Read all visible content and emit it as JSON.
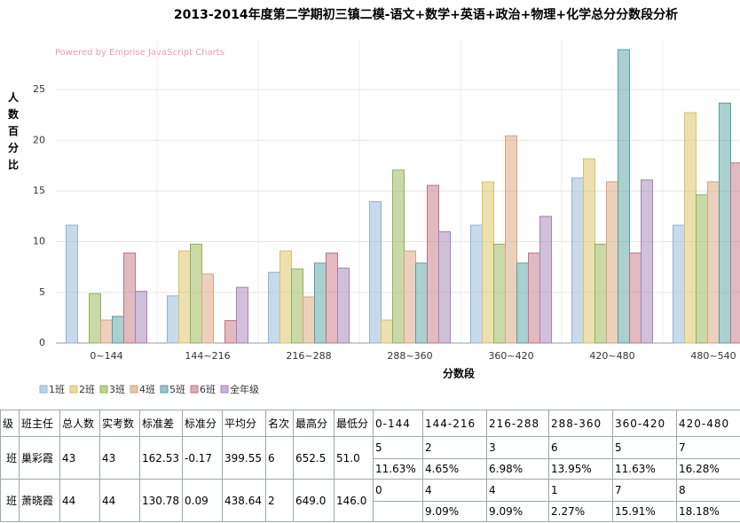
{
  "chart_data": {
    "type": "bar",
    "title": "2013-2014年度第二学期初三镇二模-语文+数学+英语+政治+物理+化学总分分数段分析",
    "credit": "Powered by Emprise JavaScript Charts",
    "y_label": "人数百分比",
    "x_label": "分数段",
    "categories": [
      "0~144",
      "144~216",
      "216~288",
      "288~360",
      "360~420",
      "420~480",
      "480~540"
    ],
    "series": [
      {
        "name": "1班",
        "color": "#8fb3d6",
        "values": [
          11.63,
          4.65,
          6.98,
          13.95,
          11.63,
          16.28,
          11.63
        ]
      },
      {
        "name": "2班",
        "color": "#d9c163",
        "values": [
          0,
          9.09,
          9.09,
          2.27,
          15.91,
          18.18,
          22.73
        ]
      },
      {
        "name": "3班",
        "color": "#94b352",
        "values": [
          4.88,
          9.76,
          7.32,
          17.07,
          9.76,
          9.76,
          14.63
        ]
      },
      {
        "name": "4班",
        "color": "#d9a27a",
        "values": [
          2.27,
          6.82,
          4.55,
          9.09,
          20.45,
          15.91,
          15.91
        ]
      },
      {
        "name": "5班",
        "color": "#55a0a0",
        "values": [
          2.63,
          0,
          7.89,
          7.89,
          7.89,
          28.95,
          23.68
        ]
      },
      {
        "name": "6班",
        "color": "#c27383",
        "values": [
          8.89,
          2.22,
          8.89,
          15.56,
          8.89,
          8.89,
          17.78
        ]
      },
      {
        "name": "全年级",
        "color": "#a382b3",
        "values": [
          5.1,
          5.5,
          7.4,
          11.0,
          12.5,
          16.1,
          null
        ]
      }
    ],
    "ylim": [
      0,
      30
    ],
    "yticks": [
      0,
      5,
      10,
      15,
      20,
      25
    ],
    "grid": true
  },
  "table": {
    "header": [
      "级",
      "班主任",
      "总人数",
      "实考数",
      "标准差",
      "标准分",
      "平均分",
      "名次",
      "最高分",
      "最低分",
      "0-144",
      "144-216",
      "216-288",
      "288-360",
      "360-420",
      "420-480"
    ],
    "rows": [
      {
        "info": [
          "班",
          "巢彩霞",
          "43",
          "43",
          "162.53",
          "-0.17",
          "399.55",
          "6",
          "652.5",
          "51.0"
        ],
        "counts": [
          "5",
          "2",
          "3",
          "6",
          "5",
          "7"
        ],
        "percents": [
          "11.63%",
          "4.65%",
          "6.98%",
          "13.95%",
          "11.63%",
          "16.28%"
        ]
      },
      {
        "info": [
          "班",
          "萧晓霞",
          "44",
          "44",
          "130.78",
          "0.09",
          "438.64",
          "2",
          "649.0",
          "146.0"
        ],
        "counts": [
          "0",
          "4",
          "4",
          "1",
          "7",
          "8"
        ],
        "percents": [
          null,
          "9.09%",
          "9.09%",
          "2.27%",
          "15.91%",
          "18.18%"
        ]
      }
    ]
  }
}
